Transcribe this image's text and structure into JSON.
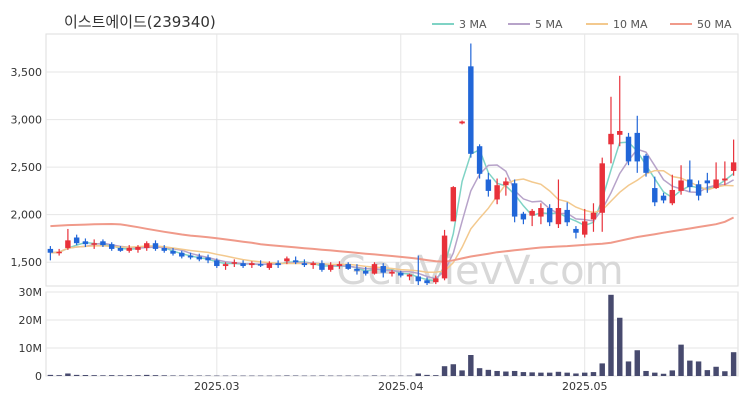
{
  "chart_data": {
    "type": "candlestick",
    "title": "이스트에이드(239340)",
    "watermark": "GenVievV.com",
    "legend": {
      "placement": "top-right",
      "items": [
        {
          "label": "3 MA",
          "color": "#7fd3c5"
        },
        {
          "label": "5 MA",
          "color": "#b7a3c9"
        },
        {
          "label": "10 MA",
          "color": "#f3c98e"
        },
        {
          "label": "50 MA",
          "color": "#f09a8a"
        }
      ]
    },
    "price_axis": {
      "ylim": [
        1250,
        3900
      ],
      "ticks": [
        1500,
        2000,
        2500,
        3000,
        3500
      ],
      "tick_labels": [
        "1,500",
        "2,000",
        "2,500",
        "3,000",
        "3,500"
      ]
    },
    "volume_axis": {
      "ylim": [
        0,
        30000000
      ],
      "ticks": [
        0,
        10000000,
        20000000,
        30000000
      ],
      "tick_labels": [
        "0",
        "10M",
        "20M",
        "30M"
      ]
    },
    "x_axis": {
      "tick_labels": [
        {
          "label": "2025.03",
          "index": 19
        },
        {
          "label": "2025.04",
          "index": 40
        },
        {
          "label": "2025.05",
          "index": 61
        }
      ]
    },
    "colors": {
      "up": "#e8313a",
      "down": "#2166d8",
      "volume": "#474a6e",
      "grid": "#e6e6e6"
    },
    "candles": [
      [
        1640,
        1670,
        1520,
        1600
      ],
      [
        1600,
        1640,
        1570,
        1610
      ],
      [
        1650,
        1850,
        1630,
        1730
      ],
      [
        1760,
        1790,
        1680,
        1700
      ],
      [
        1720,
        1750,
        1660,
        1690
      ],
      [
        1690,
        1740,
        1640,
        1700
      ],
      [
        1720,
        1740,
        1660,
        1680
      ],
      [
        1690,
        1710,
        1620,
        1640
      ],
      [
        1650,
        1670,
        1610,
        1620
      ],
      [
        1620,
        1680,
        1600,
        1650
      ],
      [
        1630,
        1680,
        1600,
        1660
      ],
      [
        1650,
        1720,
        1620,
        1700
      ],
      [
        1700,
        1730,
        1620,
        1640
      ],
      [
        1650,
        1680,
        1600,
        1620
      ],
      [
        1620,
        1650,
        1570,
        1590
      ],
      [
        1600,
        1620,
        1540,
        1560
      ],
      [
        1570,
        1600,
        1530,
        1550
      ],
      [
        1560,
        1590,
        1510,
        1530
      ],
      [
        1550,
        1580,
        1490,
        1520
      ],
      [
        1520,
        1540,
        1440,
        1460
      ],
      [
        1460,
        1500,
        1420,
        1480
      ],
      [
        1490,
        1530,
        1450,
        1500
      ],
      [
        1490,
        1520,
        1440,
        1460
      ],
      [
        1470,
        1510,
        1440,
        1490
      ],
      [
        1480,
        1520,
        1450,
        1470
      ],
      [
        1440,
        1510,
        1420,
        1490
      ],
      [
        1490,
        1520,
        1440,
        1470
      ],
      [
        1510,
        1560,
        1480,
        1540
      ],
      [
        1520,
        1560,
        1480,
        1500
      ],
      [
        1490,
        1530,
        1450,
        1470
      ],
      [
        1470,
        1510,
        1430,
        1490
      ],
      [
        1490,
        1520,
        1400,
        1420
      ],
      [
        1420,
        1500,
        1400,
        1470
      ],
      [
        1460,
        1510,
        1430,
        1480
      ],
      [
        1480,
        1500,
        1420,
        1430
      ],
      [
        1430,
        1480,
        1370,
        1410
      ],
      [
        1410,
        1450,
        1360,
        1380
      ],
      [
        1380,
        1500,
        1370,
        1480
      ],
      [
        1460,
        1490,
        1340,
        1390
      ],
      [
        1380,
        1420,
        1350,
        1400
      ],
      [
        1390,
        1410,
        1340,
        1360
      ],
      [
        1350,
        1380,
        1310,
        1370
      ],
      [
        1350,
        1570,
        1260,
        1300
      ],
      [
        1310,
        1340,
        1260,
        1280
      ],
      [
        1290,
        1360,
        1270,
        1330
      ],
      [
        1330,
        1840,
        1310,
        1780
      ],
      [
        1930,
        2300,
        1930,
        2290
      ],
      [
        2960,
        2990,
        2950,
        2980
      ],
      [
        3560,
        3800,
        2600,
        2640
      ],
      [
        2720,
        2740,
        2380,
        2430
      ],
      [
        2370,
        2440,
        2190,
        2250
      ],
      [
        2160,
        2380,
        2110,
        2310
      ],
      [
        2310,
        2390,
        2200,
        2350
      ],
      [
        2330,
        2370,
        1920,
        1980
      ],
      [
        2010,
        2030,
        1900,
        1950
      ],
      [
        1990,
        2060,
        1880,
        2040
      ],
      [
        1980,
        2120,
        1900,
        2070
      ],
      [
        2070,
        2110,
        1880,
        1920
      ],
      [
        1900,
        2370,
        1860,
        2070
      ],
      [
        2050,
        2130,
        1880,
        1920
      ],
      [
        1850,
        1880,
        1750,
        1810
      ],
      [
        1790,
        2060,
        1760,
        1930
      ],
      [
        1950,
        2120,
        1820,
        2020
      ],
      [
        2020,
        2600,
        1820,
        2540
      ],
      [
        2740,
        3240,
        2540,
        2850
      ],
      [
        2840,
        3460,
        2720,
        2880
      ],
      [
        2820,
        2860,
        2520,
        2560
      ],
      [
        2860,
        3040,
        2440,
        2560
      ],
      [
        2620,
        2640,
        2400,
        2440
      ],
      [
        2280,
        2400,
        2090,
        2130
      ],
      [
        2200,
        2230,
        2120,
        2150
      ],
      [
        2120,
        2420,
        2100,
        2260
      ],
      [
        2250,
        2520,
        2210,
        2360
      ],
      [
        2370,
        2570,
        2240,
        2290
      ],
      [
        2320,
        2360,
        2150,
        2200
      ],
      [
        2360,
        2440,
        2230,
        2330
      ],
      [
        2280,
        2550,
        2270,
        2370
      ],
      [
        2360,
        2560,
        2310,
        2380
      ],
      [
        2460,
        2790,
        2410,
        2550
      ]
    ],
    "volume": [
      400000,
      300000,
      900000,
      400000,
      350000,
      300000,
      250000,
      300000,
      250000,
      300000,
      280000,
      400000,
      300000,
      250000,
      200000,
      200000,
      200000,
      180000,
      180000,
      150000,
      150000,
      180000,
      150000,
      150000,
      150000,
      140000,
      150000,
      200000,
      180000,
      150000,
      150000,
      180000,
      150000,
      150000,
      160000,
      150000,
      140000,
      200000,
      160000,
      140000,
      150000,
      140000,
      900000,
      400000,
      300000,
      3500000,
      4200000,
      2000000,
      7500000,
      2800000,
      2200000,
      1800000,
      1600000,
      1800000,
      1400000,
      1300000,
      1200000,
      1200000,
      1500000,
      1200000,
      900000,
      1200000,
      1400000,
      4500000,
      29000000,
      20800000,
      5200000,
      9200000,
      1800000,
      1200000,
      800000,
      2000000,
      11200000,
      5500000,
      5200000,
      2100000,
      3300000,
      1700000,
      8500000
    ],
    "moving_averages": [
      {
        "label": "3 MA",
        "values": [
          1600,
          1605,
          1647,
          1680,
          1707,
          1697,
          1690,
          1673,
          1647,
          1637,
          1643,
          1670,
          1667,
          1653,
          1617,
          1590,
          1567,
          1547,
          1533,
          1503,
          1487,
          1487,
          1480,
          1483,
          1473,
          1483,
          1477,
          1500,
          1503,
          1503,
          1487,
          1460,
          1460,
          1457,
          1460,
          1440,
          1407,
          1423,
          1417,
          1423,
          1383,
          1377,
          1343,
          1317,
          1303,
          1463,
          1800,
          2350,
          2637,
          2683,
          2440,
          2330,
          2303,
          2213,
          2093,
          1990,
          2020,
          2010,
          2020,
          1970,
          1933,
          1887,
          1920,
          2163,
          2470,
          2757,
          2763,
          2667,
          2520,
          2377,
          2240,
          2180,
          2257,
          2303,
          2283,
          2273,
          2300,
          2360,
          2433
        ]
      },
      {
        "label": "5 MA",
        "values": [
          1600,
          1605,
          1647,
          1660,
          1666,
          1686,
          1702,
          1682,
          1666,
          1658,
          1650,
          1654,
          1660,
          1654,
          1642,
          1626,
          1594,
          1570,
          1550,
          1524,
          1506,
          1496,
          1484,
          1482,
          1480,
          1480,
          1482,
          1492,
          1496,
          1496,
          1492,
          1482,
          1470,
          1466,
          1458,
          1446,
          1432,
          1434,
          1418,
          1412,
          1402,
          1400,
          1384,
          1350,
          1328,
          1408,
          1596,
          1930,
          2250,
          2426,
          2518,
          2522,
          2456,
          2254,
          2166,
          2134,
          2142,
          2062,
          2010,
          2014,
          1956,
          1948,
          1934,
          2056,
          2230,
          2432,
          2570,
          2688,
          2658,
          2514,
          2368,
          2300,
          2270,
          2238,
          2234,
          2288,
          2310,
          2314,
          2366
        ]
      },
      {
        "label": "10 MA",
        "values": [
          1600,
          1605,
          1647,
          1660,
          1666,
          1672,
          1673,
          1665,
          1660,
          1659,
          1663,
          1671,
          1671,
          1662,
          1650,
          1637,
          1623,
          1613,
          1603,
          1583,
          1566,
          1545,
          1528,
          1514,
          1503,
          1496,
          1489,
          1487,
          1487,
          1487,
          1486,
          1483,
          1478,
          1477,
          1478,
          1468,
          1456,
          1449,
          1442,
          1434,
          1422,
          1417,
          1409,
          1394,
          1396,
          1407,
          1495,
          1657,
          1850,
          1963,
          2068,
          2198,
          2323,
          2363,
          2375,
          2344,
          2319,
          2249,
          2160,
          2136,
          2080,
          2045,
          2023,
          2046,
          2143,
          2235,
          2308,
          2363,
          2429,
          2464,
          2463,
          2402,
          2385,
          2344,
          2298,
          2260,
          2291,
          2308,
          2304
        ]
      },
      {
        "label": "50 MA",
        "values": [
          1880,
          1885,
          1890,
          1893,
          1896,
          1899,
          1901,
          1902,
          1898,
          1884,
          1868,
          1852,
          1836,
          1820,
          1806,
          1792,
          1780,
          1772,
          1762,
          1752,
          1740,
          1728,
          1716,
          1704,
          1690,
          1680,
          1672,
          1664,
          1656,
          1648,
          1640,
          1632,
          1624,
          1616,
          1608,
          1598,
          1590,
          1582,
          1574,
          1566,
          1556,
          1548,
          1536,
          1522,
          1510,
          1505,
          1520,
          1540,
          1560,
          1575,
          1590,
          1605,
          1615,
          1625,
          1635,
          1645,
          1655,
          1660,
          1665,
          1670,
          1676,
          1682,
          1688,
          1695,
          1705,
          1725,
          1745,
          1765,
          1780,
          1795,
          1810,
          1825,
          1840,
          1855,
          1870,
          1885,
          1900,
          1925,
          1970
        ]
      }
    ]
  }
}
